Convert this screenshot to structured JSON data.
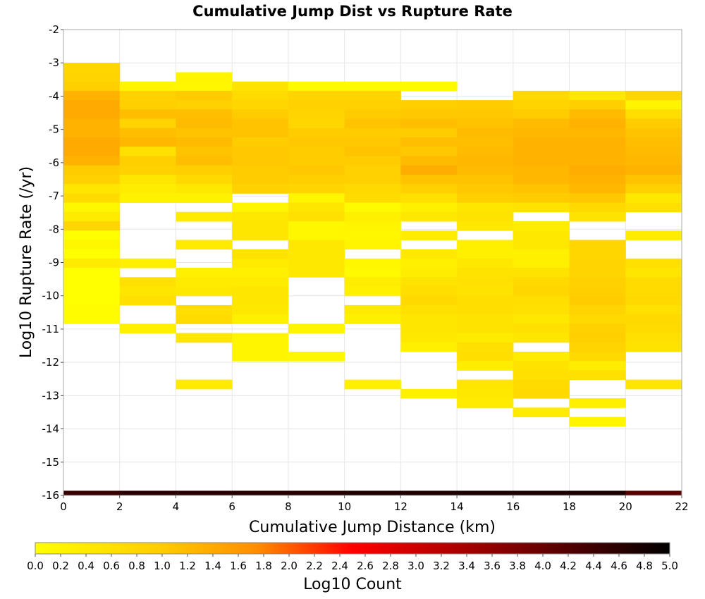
{
  "chart_data": {
    "type": "heatmap",
    "title": "Cumulative Jump Dist vs Rupture Rate",
    "xlabel": "Cumulative Jump Distance (km)",
    "ylabel": "Log10 Rupture Rate (/yr)",
    "xlim": [
      0,
      22
    ],
    "ylim": [
      -16,
      -2
    ],
    "x_ticks": [
      "0",
      "2",
      "4",
      "6",
      "8",
      "10",
      "12",
      "14",
      "16",
      "18",
      "20",
      "22"
    ],
    "y_ticks": [
      "-2",
      "-3",
      "-4",
      "-5",
      "-6",
      "-7",
      "-8",
      "-9",
      "-10",
      "-11",
      "-12",
      "-13",
      "-14",
      "-15",
      "-16"
    ],
    "x_bin_width": 2,
    "y_bin_height": 0.28,
    "colorbar": {
      "label": "Log10 Count",
      "range": [
        0,
        5
      ],
      "ticks": [
        "0.0",
        "0.2",
        "0.4",
        "0.6",
        "0.8",
        "1.0",
        "1.2",
        "1.4",
        "1.6",
        "1.8",
        "2.0",
        "2.2",
        "2.4",
        "2.6",
        "2.8",
        "3.0",
        "3.2",
        "3.4",
        "3.6",
        "3.8",
        "4.0",
        "4.2",
        "4.4",
        "4.6",
        "4.8",
        "5.0"
      ]
    },
    "grid": true,
    "columns": [
      {
        "x_start": 0,
        "cells": [
          [
            -3.0,
            0.8
          ],
          [
            -3.28,
            0.85
          ],
          [
            -3.56,
            0.95
          ],
          [
            -3.84,
            1.3
          ],
          [
            -4.12,
            1.4
          ],
          [
            -4.4,
            1.4
          ],
          [
            -4.68,
            1.3
          ],
          [
            -4.96,
            1.3
          ],
          [
            -5.24,
            1.4
          ],
          [
            -5.52,
            1.4
          ],
          [
            -5.8,
            1.3
          ],
          [
            -6.08,
            1.0
          ],
          [
            -6.36,
            0.9
          ],
          [
            -6.64,
            0.5
          ],
          [
            -6.92,
            0.7
          ],
          [
            -7.2,
            0.15
          ],
          [
            -7.48,
            0.4
          ],
          [
            -7.76,
            0.8
          ],
          [
            -8.04,
            0.0
          ],
          [
            -8.32,
            0.15
          ],
          [
            -8.6,
            0.0
          ],
          [
            -8.88,
            0.4
          ],
          [
            -9.16,
            0.0
          ],
          [
            -9.44,
            0.0
          ],
          [
            -9.72,
            0.0
          ],
          [
            -10.0,
            0.0
          ],
          [
            -10.28,
            0.05
          ],
          [
            -10.56,
            0.05
          ]
        ]
      },
      {
        "x_start": 2,
        "cells": [
          [
            -3.56,
            0.2
          ],
          [
            -3.84,
            0.9
          ],
          [
            -4.12,
            0.95
          ],
          [
            -4.4,
            1.15
          ],
          [
            -4.68,
            0.85
          ],
          [
            -4.96,
            1.15
          ],
          [
            -5.24,
            1.25
          ],
          [
            -5.52,
            0.6
          ],
          [
            -5.8,
            0.95
          ],
          [
            -6.08,
            0.9
          ],
          [
            -6.36,
            0.5
          ],
          [
            -6.64,
            0.35
          ],
          [
            -6.92,
            0.25
          ],
          [
            -8.88,
            0.3
          ],
          [
            -9.44,
            0.6
          ],
          [
            -9.72,
            0.5
          ],
          [
            -10.0,
            0.6
          ],
          [
            -10.84,
            0.3
          ]
        ]
      },
      {
        "x_start": 4,
        "cells": [
          [
            -3.28,
            0.2
          ],
          [
            -3.56,
            0.15
          ],
          [
            -3.84,
            1.0
          ],
          [
            -4.12,
            0.9
          ],
          [
            -4.4,
            1.15
          ],
          [
            -4.68,
            1.2
          ],
          [
            -4.96,
            1.1
          ],
          [
            -5.24,
            1.2
          ],
          [
            -5.52,
            1.1
          ],
          [
            -5.8,
            1.15
          ],
          [
            -6.08,
            0.95
          ],
          [
            -6.36,
            0.75
          ],
          [
            -6.64,
            0.45
          ],
          [
            -6.92,
            0.25
          ],
          [
            -7.48,
            0.4
          ],
          [
            -8.32,
            0.4
          ],
          [
            -9.16,
            0.3
          ],
          [
            -9.44,
            0.4
          ],
          [
            -9.72,
            0.45
          ],
          [
            -10.28,
            0.65
          ],
          [
            -10.56,
            0.7
          ],
          [
            -11.12,
            0.5
          ],
          [
            -12.52,
            0.4
          ]
        ]
      },
      {
        "x_start": 6,
        "cells": [
          [
            -3.56,
            0.55
          ],
          [
            -3.84,
            0.7
          ],
          [
            -4.12,
            0.8
          ],
          [
            -4.4,
            1.0
          ],
          [
            -4.68,
            1.1
          ],
          [
            -4.96,
            1.1
          ],
          [
            -5.24,
            1.0
          ],
          [
            -5.52,
            1.05
          ],
          [
            -5.8,
            1.05
          ],
          [
            -6.08,
            1.0
          ],
          [
            -6.36,
            1.0
          ],
          [
            -6.64,
            0.9
          ],
          [
            -7.2,
            0.2
          ],
          [
            -7.48,
            0.45
          ],
          [
            -7.76,
            0.5
          ],
          [
            -8.04,
            0.5
          ],
          [
            -8.6,
            0.55
          ],
          [
            -8.88,
            0.4
          ],
          [
            -9.16,
            0.3
          ],
          [
            -9.44,
            0.4
          ],
          [
            -9.72,
            0.5
          ],
          [
            -10.0,
            0.5
          ],
          [
            -10.28,
            0.45
          ],
          [
            -10.56,
            0.3
          ],
          [
            -11.12,
            0.2
          ],
          [
            -11.4,
            0.2
          ],
          [
            -11.68,
            0.2
          ]
        ]
      },
      {
        "x_start": 8,
        "cells": [
          [
            -3.56,
            0.1
          ],
          [
            -3.84,
            0.85
          ],
          [
            -4.12,
            0.9
          ],
          [
            -4.4,
            0.85
          ],
          [
            -4.68,
            0.8
          ],
          [
            -4.96,
            1.0
          ],
          [
            -5.24,
            1.05
          ],
          [
            -5.52,
            1.0
          ],
          [
            -5.8,
            1.0
          ],
          [
            -6.08,
            1.05
          ],
          [
            -6.36,
            0.95
          ],
          [
            -6.64,
            0.85
          ],
          [
            -6.92,
            0.2
          ],
          [
            -7.2,
            0.5
          ],
          [
            -7.48,
            0.6
          ],
          [
            -7.76,
            0.15
          ],
          [
            -8.04,
            0.15
          ],
          [
            -8.32,
            0.45
          ],
          [
            -8.6,
            0.45
          ],
          [
            -8.88,
            0.45
          ],
          [
            -9.16,
            0.45
          ],
          [
            -10.84,
            0.2
          ],
          [
            -11.68,
            0.15
          ]
        ]
      },
      {
        "x_start": 10,
        "cells": [
          [
            -3.56,
            0.1
          ],
          [
            -3.84,
            0.85
          ],
          [
            -4.12,
            0.9
          ],
          [
            -4.4,
            1.0
          ],
          [
            -4.68,
            1.1
          ],
          [
            -4.96,
            1.0
          ],
          [
            -5.24,
            1.05
          ],
          [
            -5.52,
            1.1
          ],
          [
            -5.8,
            1.0
          ],
          [
            -6.08,
            0.9
          ],
          [
            -6.36,
            0.9
          ],
          [
            -6.64,
            0.75
          ],
          [
            -6.92,
            0.7
          ],
          [
            -7.2,
            0.1
          ],
          [
            -7.48,
            0.3
          ],
          [
            -7.76,
            0.2
          ],
          [
            -8.04,
            0.15
          ],
          [
            -8.32,
            0.2
          ],
          [
            -8.88,
            0.15
          ],
          [
            -9.16,
            0.1
          ],
          [
            -9.44,
            0.35
          ],
          [
            -9.72,
            0.3
          ],
          [
            -10.28,
            0.4
          ],
          [
            -10.56,
            0.3
          ],
          [
            -12.52,
            0.3
          ]
        ]
      },
      {
        "x_start": 12,
        "cells": [
          [
            -3.56,
            0.1
          ],
          [
            -4.12,
            0.95
          ],
          [
            -4.4,
            1.05
          ],
          [
            -4.68,
            1.15
          ],
          [
            -4.96,
            1.0
          ],
          [
            -5.24,
            1.15
          ],
          [
            -5.52,
            1.05
          ],
          [
            -5.8,
            1.2
          ],
          [
            -6.08,
            1.35
          ],
          [
            -6.36,
            1.1
          ],
          [
            -6.64,
            0.9
          ],
          [
            -6.92,
            0.6
          ],
          [
            -7.2,
            0.3
          ],
          [
            -7.48,
            0.45
          ],
          [
            -8.04,
            0.35
          ],
          [
            -8.6,
            0.45
          ],
          [
            -8.88,
            0.3
          ],
          [
            -9.16,
            0.35
          ],
          [
            -9.44,
            0.55
          ],
          [
            -9.72,
            0.65
          ],
          [
            -10.0,
            0.75
          ],
          [
            -10.28,
            0.6
          ],
          [
            -10.56,
            0.5
          ],
          [
            -10.84,
            0.5
          ],
          [
            -11.12,
            0.45
          ],
          [
            -11.4,
            0.3
          ],
          [
            -12.8,
            0.3
          ]
        ]
      },
      {
        "x_start": 14,
        "cells": [
          [
            -4.12,
            1.0
          ],
          [
            -4.4,
            1.05
          ],
          [
            -4.68,
            1.1
          ],
          [
            -4.96,
            1.2
          ],
          [
            -5.24,
            1.15
          ],
          [
            -5.52,
            1.2
          ],
          [
            -5.8,
            1.25
          ],
          [
            -6.08,
            1.2
          ],
          [
            -6.36,
            1.1
          ],
          [
            -6.64,
            1.05
          ],
          [
            -6.92,
            0.95
          ],
          [
            -7.2,
            0.5
          ],
          [
            -7.48,
            0.55
          ],
          [
            -7.76,
            0.45
          ],
          [
            -8.32,
            0.3
          ],
          [
            -8.6,
            0.3
          ],
          [
            -8.88,
            0.45
          ],
          [
            -9.16,
            0.55
          ],
          [
            -9.44,
            0.6
          ],
          [
            -9.72,
            0.55
          ],
          [
            -10.0,
            0.65
          ],
          [
            -10.28,
            0.65
          ],
          [
            -10.56,
            0.55
          ],
          [
            -10.84,
            0.55
          ],
          [
            -11.12,
            0.4
          ],
          [
            -11.4,
            0.6
          ],
          [
            -11.68,
            0.65
          ],
          [
            -11.96,
            0.35
          ],
          [
            -12.52,
            0.5
          ],
          [
            -12.8,
            0.45
          ],
          [
            -13.08,
            0.4
          ]
        ]
      },
      {
        "x_start": 16,
        "cells": [
          [
            -3.84,
            0.75
          ],
          [
            -4.12,
            0.85
          ],
          [
            -4.4,
            1.0
          ],
          [
            -4.68,
            1.2
          ],
          [
            -4.96,
            1.25
          ],
          [
            -5.24,
            1.3
          ],
          [
            -5.52,
            1.3
          ],
          [
            -5.8,
            1.3
          ],
          [
            -6.08,
            1.25
          ],
          [
            -6.36,
            1.25
          ],
          [
            -6.64,
            1.1
          ],
          [
            -6.92,
            1.0
          ],
          [
            -7.2,
            0.55
          ],
          [
            -7.76,
            0.35
          ],
          [
            -8.04,
            0.45
          ],
          [
            -8.32,
            0.45
          ],
          [
            -8.6,
            0.3
          ],
          [
            -8.88,
            0.3
          ],
          [
            -9.16,
            0.55
          ],
          [
            -9.44,
            0.75
          ],
          [
            -9.72,
            0.8
          ],
          [
            -10.0,
            0.65
          ],
          [
            -10.28,
            0.6
          ],
          [
            -10.56,
            0.45
          ],
          [
            -10.84,
            0.6
          ],
          [
            -11.12,
            0.5
          ],
          [
            -11.68,
            0.4
          ],
          [
            -11.96,
            0.55
          ],
          [
            -12.24,
            0.6
          ],
          [
            -12.52,
            0.7
          ],
          [
            -12.8,
            0.75
          ],
          [
            -13.36,
            0.4
          ]
        ]
      },
      {
        "x_start": 18,
        "cells": [
          [
            -3.84,
            0.45
          ],
          [
            -4.12,
            0.95
          ],
          [
            -4.4,
            1.2
          ],
          [
            -4.68,
            1.3
          ],
          [
            -4.96,
            1.25
          ],
          [
            -5.24,
            1.3
          ],
          [
            -5.52,
            1.3
          ],
          [
            -5.8,
            1.3
          ],
          [
            -6.08,
            1.35
          ],
          [
            -6.36,
            1.3
          ],
          [
            -6.64,
            1.25
          ],
          [
            -6.92,
            1.05
          ],
          [
            -7.2,
            0.75
          ],
          [
            -7.48,
            0.55
          ],
          [
            -8.32,
            0.8
          ],
          [
            -8.6,
            0.8
          ],
          [
            -8.88,
            0.85
          ],
          [
            -9.16,
            0.85
          ],
          [
            -9.44,
            0.9
          ],
          [
            -9.72,
            0.95
          ],
          [
            -10.0,
            1.0
          ],
          [
            -10.28,
            0.85
          ],
          [
            -10.56,
            0.75
          ],
          [
            -10.84,
            0.9
          ],
          [
            -11.12,
            0.95
          ],
          [
            -11.4,
            0.85
          ],
          [
            -11.68,
            0.75
          ],
          [
            -11.96,
            0.35
          ],
          [
            -12.24,
            0.6
          ],
          [
            -13.08,
            0.3
          ],
          [
            -13.64,
            0.2
          ]
        ]
      },
      {
        "x_start": 20,
        "cells": [
          [
            -3.84,
            0.8
          ],
          [
            -4.12,
            0.2
          ],
          [
            -4.4,
            0.65
          ],
          [
            -4.68,
            1.0
          ],
          [
            -4.96,
            1.1
          ],
          [
            -5.24,
            1.15
          ],
          [
            -5.52,
            1.2
          ],
          [
            -5.8,
            1.25
          ],
          [
            -6.08,
            1.3
          ],
          [
            -6.36,
            1.1
          ],
          [
            -6.64,
            0.9
          ],
          [
            -6.92,
            0.45
          ],
          [
            -7.2,
            0.6
          ],
          [
            -8.04,
            0.35
          ],
          [
            -8.88,
            0.6
          ],
          [
            -9.16,
            0.5
          ],
          [
            -9.44,
            0.7
          ],
          [
            -9.72,
            0.7
          ],
          [
            -10.0,
            0.75
          ],
          [
            -10.28,
            0.6
          ],
          [
            -10.56,
            0.75
          ],
          [
            -10.84,
            0.7
          ],
          [
            -11.12,
            0.6
          ],
          [
            -11.4,
            0.55
          ],
          [
            -12.52,
            0.5
          ]
        ]
      }
    ],
    "bottom_row": {
      "y_start": -16.0,
      "height": 0.14,
      "values": [
        4.45,
        4.6,
        4.6,
        4.65,
        4.65,
        4.7,
        4.7,
        4.75,
        4.75,
        4.75,
        4.15
      ]
    }
  }
}
